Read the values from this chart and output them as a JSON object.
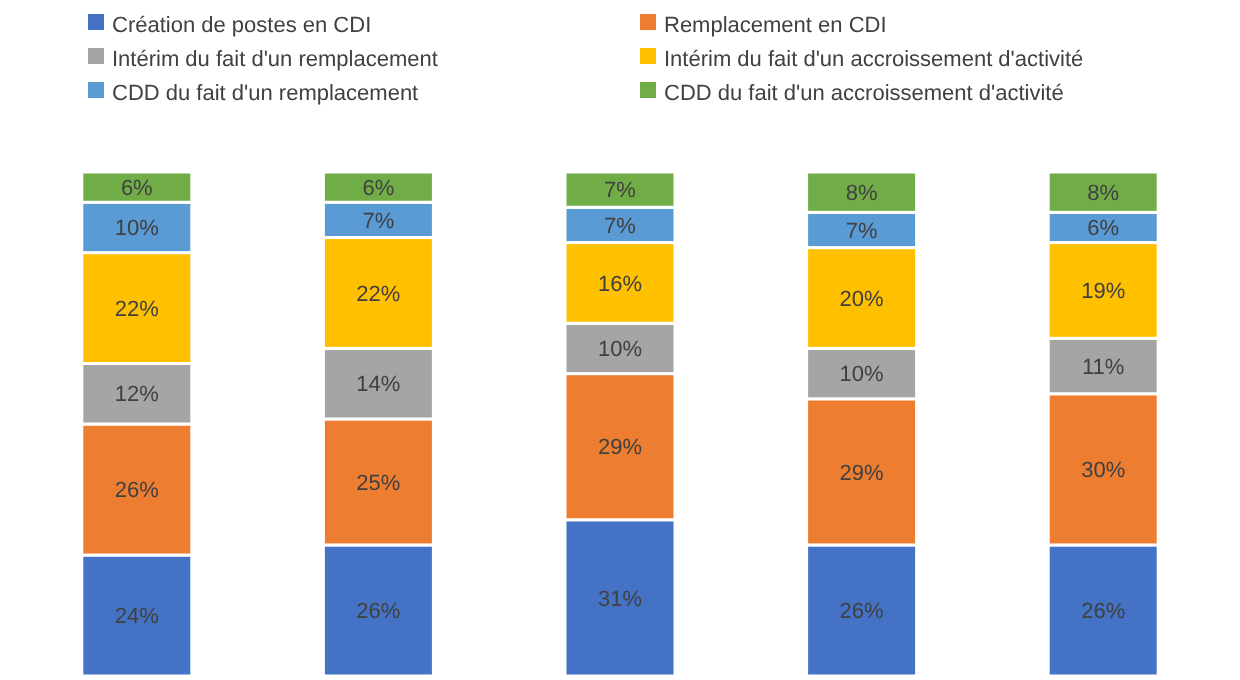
{
  "chart_data": {
    "type": "bar",
    "stacked": true,
    "legend": "top",
    "categories": [
      null,
      null,
      null,
      null,
      null
    ],
    "series": [
      {
        "name": "Création de postes en CDI",
        "color": "#4472c4",
        "values": [
          24,
          26,
          31,
          26,
          26
        ],
        "value_labels": [
          "24%",
          "26%",
          "31%",
          "26%",
          "26%"
        ]
      },
      {
        "name": "Remplacement en CDI",
        "color": "#ed7d31",
        "values": [
          26,
          25,
          29,
          29,
          30
        ],
        "value_labels": [
          "26%",
          "25%",
          "29%",
          "29%",
          "30%"
        ]
      },
      {
        "name": "Intérim du fait d'un remplacement",
        "color": "#a5a5a5",
        "values": [
          12,
          14,
          10,
          10,
          11
        ],
        "value_labels": [
          "12%",
          "14%",
          "10%",
          "10%",
          "11%"
        ]
      },
      {
        "name": "Intérim du fait d'un accroissement d'activité",
        "color": "#ffc000",
        "values": [
          22,
          22,
          16,
          20,
          19
        ],
        "value_labels": [
          "22%",
          "22%",
          "16%",
          "20%",
          "19%"
        ]
      },
      {
        "name": "CDD du fait d'un remplacement",
        "color": "#5b9bd5",
        "values": [
          10,
          7,
          7,
          7,
          6
        ],
        "value_labels": [
          "10%",
          "7%",
          "7%",
          "7%",
          "6%"
        ]
      },
      {
        "name": "CDD du fait d'un accroissement d'activité",
        "color": "#70ad47",
        "values": [
          6,
          6,
          7,
          8,
          8
        ],
        "value_labels": [
          "6%",
          "6%",
          "7%",
          "8%",
          "8%"
        ]
      }
    ]
  }
}
